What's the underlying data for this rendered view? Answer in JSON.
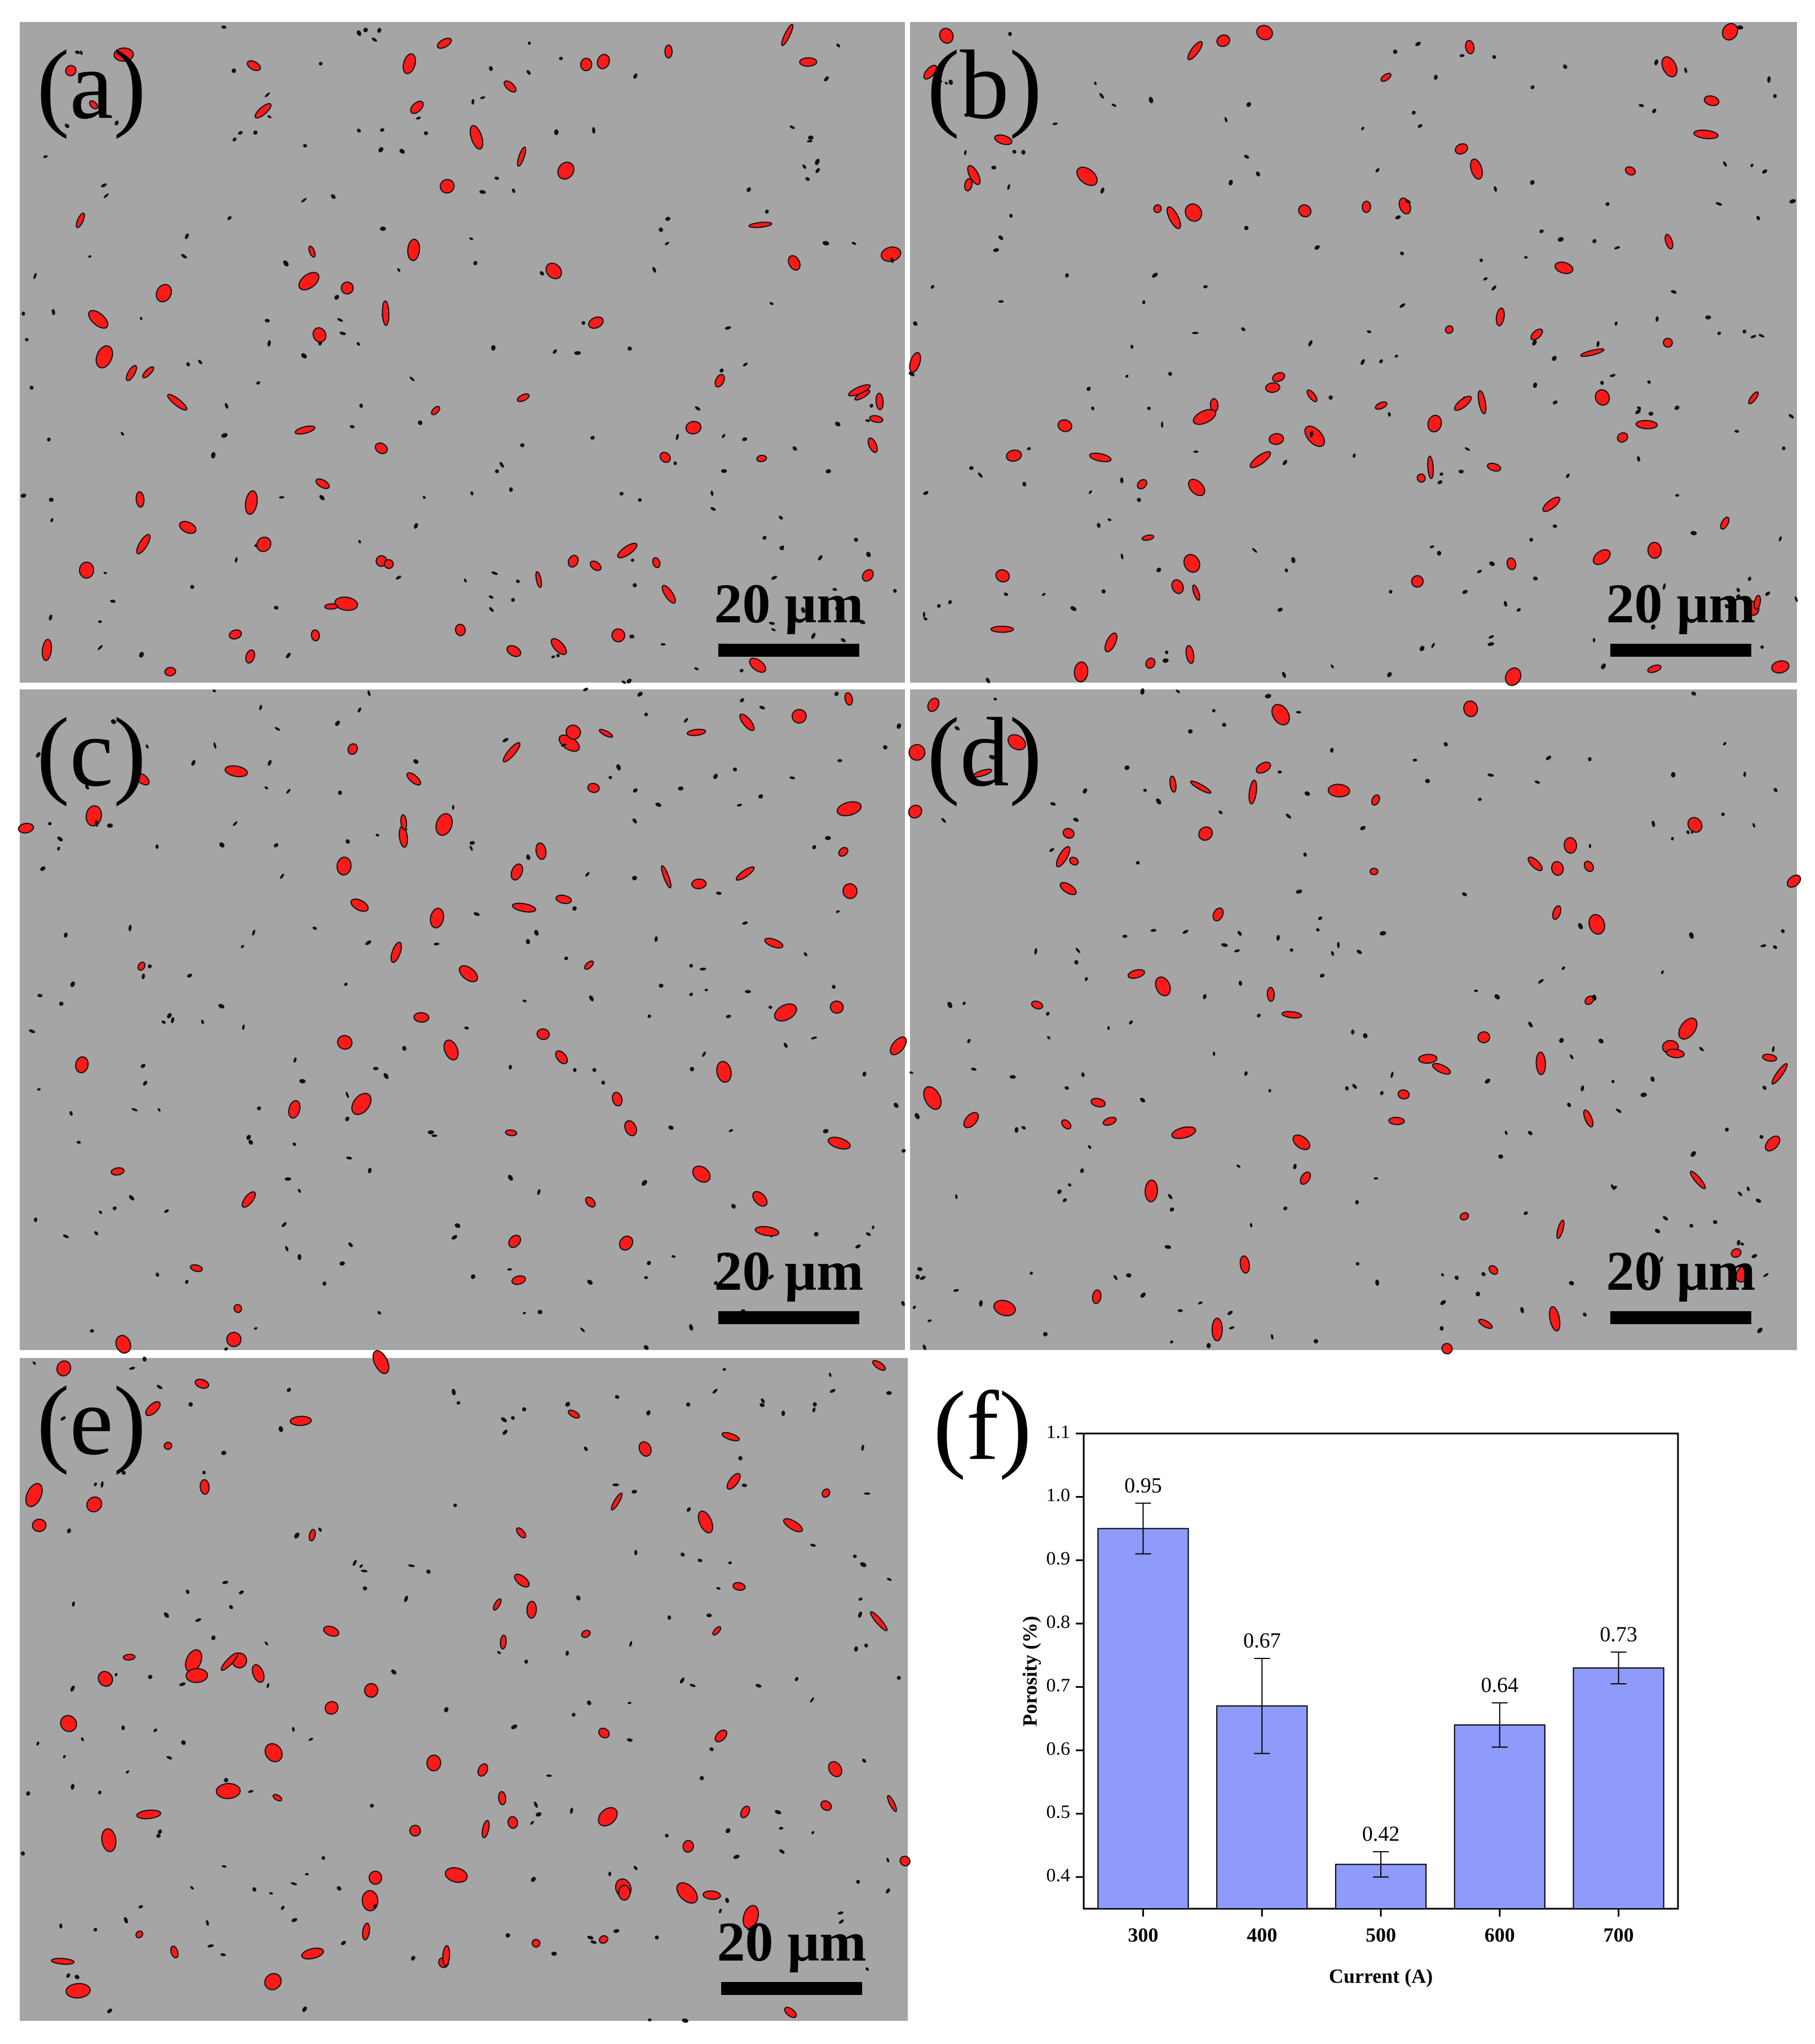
{
  "panels": [
    {
      "label": "(a)",
      "scale_bar": "20 μm"
    },
    {
      "label": "(b)",
      "scale_bar": "20 μm"
    },
    {
      "label": "(c)",
      "scale_bar": "20 μm"
    },
    {
      "label": "(d)",
      "scale_bar": "20 μm"
    },
    {
      "label": "(e)",
      "scale_bar": "20 μm"
    }
  ],
  "chart_data": {
    "type": "bar",
    "panel_label": "(f)",
    "x_label": "Current (A)",
    "y_label": "Porosity (%)",
    "categories": [
      "300",
      "400",
      "500",
      "600",
      "700"
    ],
    "values": [
      0.95,
      0.67,
      0.42,
      0.64,
      0.73
    ],
    "errors": [
      0.04,
      0.075,
      0.02,
      0.035,
      0.025
    ],
    "color": "#8e9bfa",
    "ylim": [
      0.35,
      1.1
    ],
    "yticks": [
      0.4,
      0.5,
      0.6,
      0.7,
      0.8,
      0.9,
      {
        "value": 1,
        "label": "1.0"
      },
      1.1
    ]
  }
}
